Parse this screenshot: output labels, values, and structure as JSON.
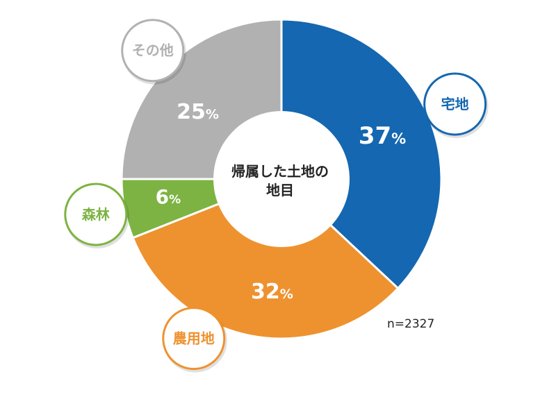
{
  "chart_data": {
    "type": "pie",
    "center_title": [
      "帰属した土地の",
      "地目"
    ],
    "sample_size": "n=2327",
    "slices": [
      {
        "label": "宅地",
        "value": 37,
        "display": "37",
        "color": "#1467b0"
      },
      {
        "label": "農用地",
        "value": 32,
        "display": "32",
        "color": "#ee922f"
      },
      {
        "label": "森林",
        "value": 6,
        "display": "6",
        "color": "#7cb342"
      },
      {
        "label": "その他",
        "value": 25,
        "display": "25",
        "color": "#b1b1b1"
      }
    ],
    "percent_symbol": "%",
    "donut": true
  }
}
